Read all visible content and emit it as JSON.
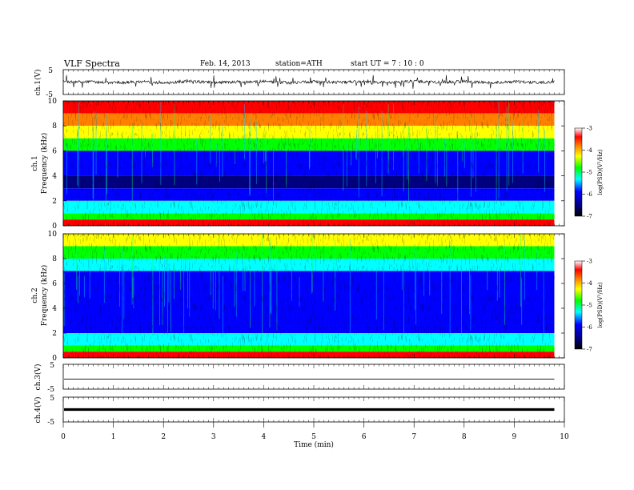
{
  "header": {
    "title": "VLF  Spectra",
    "date": "Feb. 14, 2013",
    "station": "station=ATH",
    "start_time": "start  UT  =   7  : 10 : 0"
  },
  "chart_data": [
    {
      "type": "line",
      "panel": "ch1-waveform",
      "ylabel": "ch.1(V)",
      "ylim": [
        -5,
        5
      ],
      "yticks": [
        "5",
        "-5"
      ],
      "trace_color": "#000000",
      "series": [
        {
          "x_min": [
            0,
            0.5,
            1,
            1.5,
            2,
            2.5,
            3,
            3.5,
            4,
            4.5,
            5,
            5.5,
            6,
            6.5,
            7,
            7.5,
            8,
            8.5,
            9,
            9.5,
            9.8
          ],
          "values": [
            0,
            0.2,
            -0.3,
            0.1,
            -0.4,
            0.3,
            -0.2,
            0.1,
            0.2,
            -0.3,
            0.2,
            -0.1,
            0.1,
            -0.2,
            0.3,
            -0.1,
            0.2,
            -0.3,
            0.1,
            -0.2,
            0
          ]
        }
      ]
    },
    {
      "type": "heatmap",
      "panel": "ch1-spectrogram",
      "ylabel": "ch.1",
      "ylabel2": "Frequency  (kHz)",
      "ylim": [
        0,
        10
      ],
      "yticks": [
        "0",
        "2",
        "4",
        "6",
        "8",
        "10"
      ],
      "zlabel": "log(PSD)(V²/Hz)",
      "zlim": [
        -7,
        -3
      ],
      "zticks": [
        "-3",
        "-4",
        "-5",
        "-6",
        "-7"
      ],
      "psd_by_band": [
        {
          "f": [
            9,
            10
          ],
          "log_psd": -3.6
        },
        {
          "f": [
            8,
            9
          ],
          "log_psd": -4.2
        },
        {
          "f": [
            7,
            8
          ],
          "log_psd": -4.9
        },
        {
          "f": [
            6,
            7
          ],
          "log_psd": -5.3
        },
        {
          "f": [
            5,
            6
          ],
          "log_psd": -6.6
        },
        {
          "f": [
            4,
            5
          ],
          "log_psd": -6.7
        },
        {
          "f": [
            3,
            4
          ],
          "log_psd": -6.8
        },
        {
          "f": [
            2,
            3
          ],
          "log_psd": -6.3
        },
        {
          "f": [
            1,
            2
          ],
          "log_psd": -6.0
        },
        {
          "f": [
            0.5,
            1
          ],
          "log_psd": -5.0
        },
        {
          "f": [
            0,
            0.5
          ],
          "log_psd": -3.5
        }
      ]
    },
    {
      "type": "heatmap",
      "panel": "ch2-spectrogram",
      "ylabel": "ch.2",
      "ylabel2": "Frequency  (kHz)",
      "ylim": [
        0,
        10
      ],
      "yticks": [
        "0",
        "2",
        "4",
        "6",
        "8",
        "10"
      ],
      "zlabel": "log(PSD)(V²/Hz)",
      "zlim": [
        -7,
        -3
      ],
      "zticks": [
        "-3",
        "-4",
        "-5",
        "-6",
        "-7"
      ],
      "psd_by_band": [
        {
          "f": [
            9,
            10
          ],
          "log_psd": -4.8
        },
        {
          "f": [
            8,
            9
          ],
          "log_psd": -5.1
        },
        {
          "f": [
            7,
            8
          ],
          "log_psd": -5.6
        },
        {
          "f": [
            6,
            7
          ],
          "log_psd": -6.2
        },
        {
          "f": [
            5,
            6
          ],
          "log_psd": -6.6
        },
        {
          "f": [
            4,
            5
          ],
          "log_psd": -6.7
        },
        {
          "f": [
            3,
            4
          ],
          "log_psd": -6.5
        },
        {
          "f": [
            2,
            3
          ],
          "log_psd": -6.3
        },
        {
          "f": [
            1,
            2
          ],
          "log_psd": -6.0
        },
        {
          "f": [
            0.5,
            1
          ],
          "log_psd": -5.0
        },
        {
          "f": [
            0,
            0.5
          ],
          "log_psd": -3.8
        }
      ]
    },
    {
      "type": "line",
      "panel": "ch3-waveform",
      "ylabel": "ch.3(V)",
      "ylim": [
        -5,
        5
      ],
      "yticks": [
        "5",
        "-5"
      ],
      "series": [
        {
          "level": -1
        }
      ]
    },
    {
      "type": "line",
      "panel": "ch4-waveform",
      "ylabel": "ch.4(V)",
      "ylim": [
        -5,
        5
      ],
      "yticks": [
        "5",
        "-5"
      ],
      "series": [
        {
          "level": 0
        }
      ]
    }
  ],
  "xaxis": {
    "label": "Time  (min)",
    "ticks": [
      "0",
      "1",
      "2",
      "3",
      "4",
      "5",
      "6",
      "7",
      "8",
      "9",
      "10"
    ],
    "xlim": [
      0,
      10
    ],
    "data_end": 9.8
  },
  "colors": {
    "colormap": [
      "#000080",
      "#0000ff",
      "#00ffff",
      "#00ff00",
      "#ffff00",
      "#ff8000",
      "#ff0000",
      "#ffffff"
    ]
  }
}
